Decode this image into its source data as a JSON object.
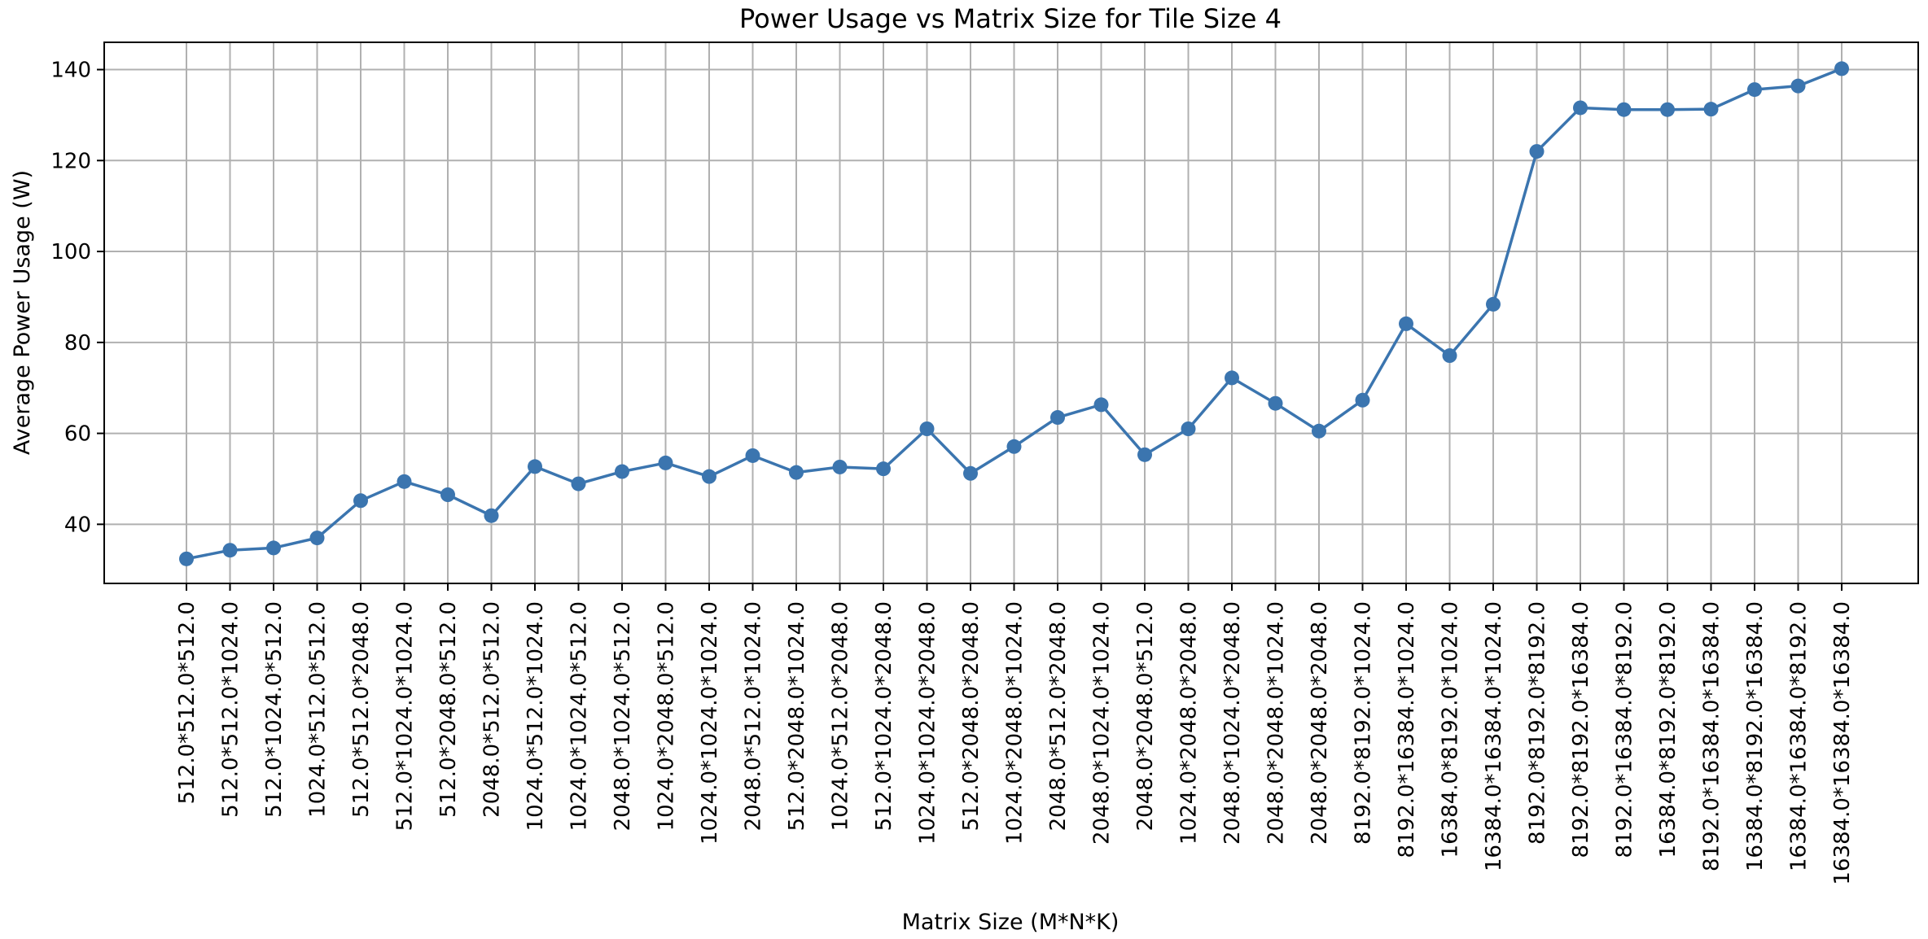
{
  "chart_data": {
    "type": "line",
    "title": "Power Usage vs Matrix Size for Tile Size 4",
    "xlabel": "Matrix Size (M*N*K)",
    "ylabel": "Average Power Usage (W)",
    "ylim": [
      27,
      146
    ],
    "yticks": [
      40,
      60,
      80,
      100,
      120,
      140
    ],
    "grid": true,
    "color": "#3b75af",
    "categories": [
      "512.0*512.0*512.0",
      "512.0*512.0*1024.0",
      "512.0*1024.0*512.0",
      "1024.0*512.0*512.0",
      "512.0*512.0*2048.0",
      "512.0*1024.0*1024.0",
      "512.0*2048.0*512.0",
      "2048.0*512.0*512.0",
      "1024.0*512.0*1024.0",
      "1024.0*1024.0*512.0",
      "2048.0*1024.0*512.0",
      "1024.0*2048.0*512.0",
      "1024.0*1024.0*1024.0",
      "2048.0*512.0*1024.0",
      "512.0*2048.0*1024.0",
      "1024.0*512.0*2048.0",
      "512.0*1024.0*2048.0",
      "1024.0*1024.0*2048.0",
      "512.0*2048.0*2048.0",
      "1024.0*2048.0*1024.0",
      "2048.0*512.0*2048.0",
      "2048.0*1024.0*1024.0",
      "2048.0*2048.0*512.0",
      "1024.0*2048.0*2048.0",
      "2048.0*1024.0*2048.0",
      "2048.0*2048.0*1024.0",
      "2048.0*2048.0*2048.0",
      "8192.0*8192.0*1024.0",
      "8192.0*16384.0*1024.0",
      "16384.0*8192.0*1024.0",
      "16384.0*16384.0*1024.0",
      "8192.0*8192.0*8192.0",
      "8192.0*8192.0*16384.0",
      "8192.0*16384.0*8192.0",
      "16384.0*8192.0*8192.0",
      "8192.0*16384.0*16384.0",
      "16384.0*8192.0*16384.0",
      "16384.0*16384.0*8192.0",
      "16384.0*16384.0*16384.0"
    ],
    "values": [
      32.4,
      34.3,
      34.8,
      37.0,
      45.2,
      49.4,
      46.5,
      41.9,
      52.7,
      48.9,
      51.6,
      53.5,
      50.5,
      55.1,
      51.4,
      52.6,
      52.2,
      61.0,
      51.2,
      57.1,
      63.5,
      66.3,
      55.3,
      61.0,
      72.2,
      66.6,
      60.5,
      67.3,
      84.1,
      77.1,
      88.4,
      122.0,
      131.6,
      131.2,
      131.2,
      131.3,
      135.6,
      136.4,
      140.2
    ]
  }
}
